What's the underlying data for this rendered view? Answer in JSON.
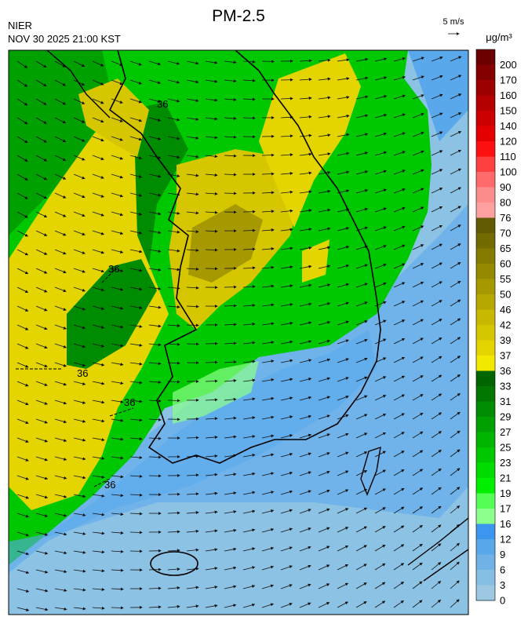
{
  "title": "PM-2.5",
  "agency": "NIER",
  "timestamp": "NOV 30 2025 21:00 KST",
  "wind_reference": "5 m/s",
  "unit": "μg/m³",
  "colorbar": {
    "levels": [
      200,
      170,
      160,
      150,
      140,
      120,
      110,
      100,
      90,
      80,
      76,
      70,
      65,
      60,
      55,
      50,
      46,
      42,
      39,
      37,
      36,
      33,
      31,
      29,
      27,
      25,
      23,
      21,
      19,
      17,
      16,
      12,
      9,
      6,
      3,
      0
    ],
    "colors": [
      "#6a0000",
      "#840000",
      "#9c0000",
      "#b40000",
      "#cc0000",
      "#e40000",
      "#ff1010",
      "#ff4040",
      "#ff6a6a",
      "#ff8c8c",
      "#ffa0a0",
      "#625a00",
      "#736a00",
      "#847a00",
      "#958900",
      "#a69900",
      "#b7a800",
      "#c8b800",
      "#d6c600",
      "#e4d400",
      "#f2e800",
      "#006400",
      "#007800",
      "#008c00",
      "#00a000",
      "#00b400",
      "#00c800",
      "#00dc00",
      "#00f000",
      "#55ff55",
      "#8cff8c",
      "#3c96f0",
      "#5aa8ec",
      "#70b2e6",
      "#86bee4",
      "#9cc8e2"
    ]
  },
  "contour_labels": [
    "36",
    "36",
    "36",
    "36",
    "36"
  ]
}
